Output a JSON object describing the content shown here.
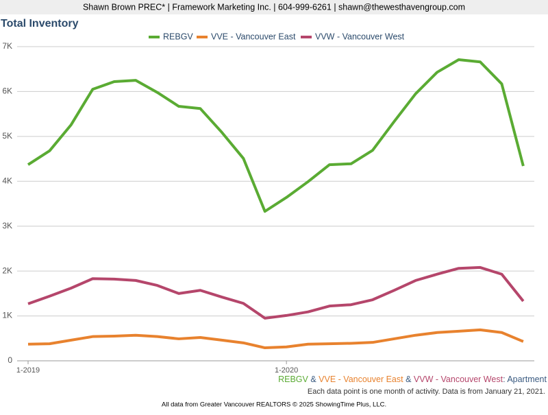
{
  "header": "Shawn Brown PREC* | Framework Marketing Inc. | 604-999-6261 | shawn@thewesthavengroup.com",
  "chart_data": {
    "type": "line",
    "title": "Total Inventory",
    "categories": [
      "1-2019",
      null,
      null,
      null,
      null,
      null,
      null,
      null,
      null,
      null,
      null,
      null,
      "1-2020",
      null,
      null,
      null,
      null,
      null,
      null,
      null,
      null,
      null,
      null,
      null
    ],
    "series": [
      {
        "name": "REBGV",
        "color": "#5aab33",
        "values": [
          4370,
          4680,
          5260,
          6050,
          6220,
          6250,
          5980,
          5670,
          5620,
          5090,
          4510,
          3330,
          3640,
          3990,
          4370,
          4390,
          4690,
          5330,
          5950,
          6430,
          6710,
          6660,
          6170,
          4340
        ]
      },
      {
        "name": "VVE - Vancouver East",
        "color": "#e8822e",
        "values": [
          370,
          380,
          460,
          540,
          550,
          570,
          540,
          490,
          520,
          460,
          400,
          290,
          310,
          370,
          380,
          390,
          410,
          490,
          570,
          630,
          660,
          690,
          630,
          430
        ]
      },
      {
        "name": "VVW - Vancouver West",
        "color": "#b5466b",
        "values": [
          1270,
          1440,
          1620,
          1830,
          1820,
          1790,
          1680,
          1500,
          1570,
          1420,
          1280,
          950,
          1010,
          1090,
          1220,
          1250,
          1360,
          1570,
          1790,
          1930,
          2060,
          2080,
          1930,
          1330
        ]
      }
    ],
    "ylim": [
      0,
      7000
    ],
    "yticks": [
      0,
      {
        "value": 1000,
        "label": "1K"
      },
      {
        "value": 2000,
        "label": "2K"
      },
      {
        "value": 3000,
        "label": "3K"
      },
      {
        "value": 4000,
        "label": "4K"
      },
      {
        "value": 5000,
        "label": "5K"
      },
      {
        "value": 6000,
        "label": "6K"
      },
      {
        "value": 7000,
        "label": "7K"
      }
    ],
    "grid": true,
    "legend": "top",
    "series_note": {
      "separator": "&",
      "suffix": ": Apartment",
      "suffix_color": "#3a5a80"
    },
    "note": "Each data point is one month of activity. Data is from January 21, 2021.",
    "source": "All data from Greater Vancouver REALTORS © 2025 ShowingTime Plus, LLC."
  }
}
